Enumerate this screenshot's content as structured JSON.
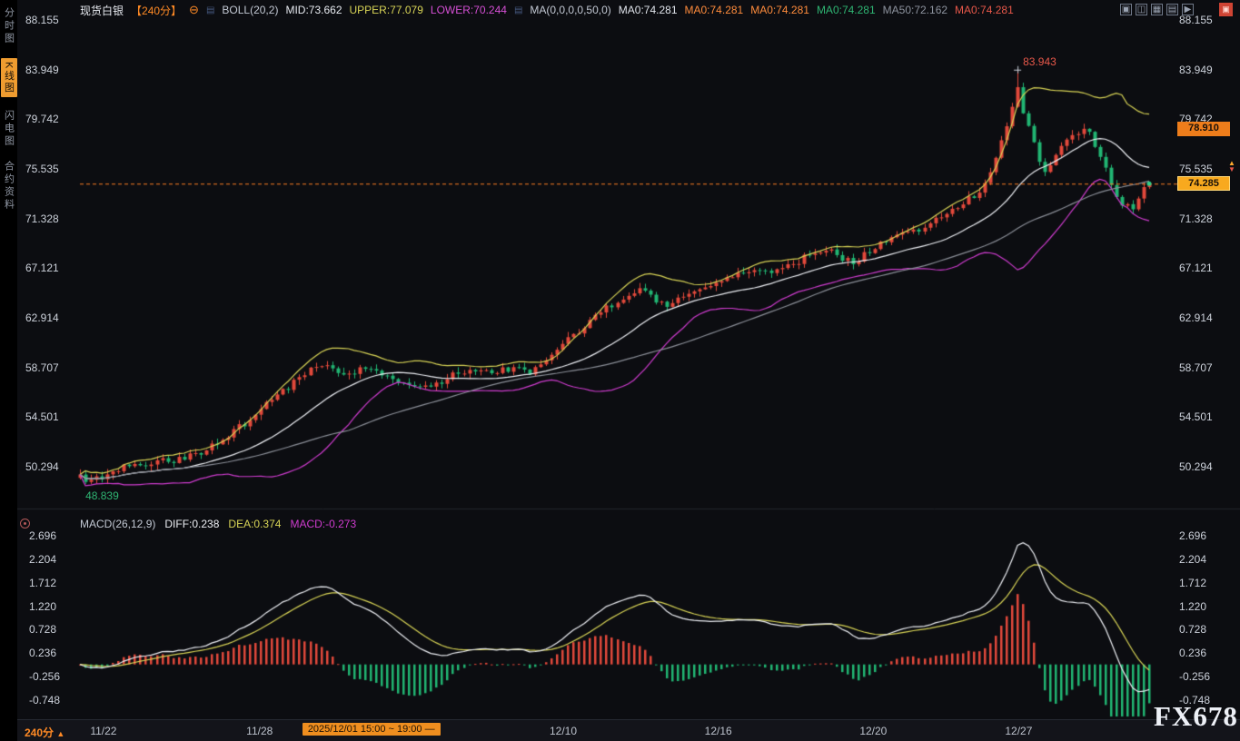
{
  "app": {
    "watermark": "FX678"
  },
  "header": {
    "symbol": "现货白银",
    "period_tag": "【240分】",
    "collapse_icon_glyph": "⊖",
    "indicator_icon_glyph": "▤",
    "boll_label": "BOLL(20,2)",
    "boll_mid": "MID:73.662",
    "boll_upper": "UPPER:77.079",
    "boll_lower": "LOWER:70.244",
    "ma_label": "MA(0,0,0,0,50,0)",
    "ma_values": [
      {
        "text": "MA0:74.281",
        "color": "#dfe3ea"
      },
      {
        "text": "MA0:74.281",
        "color": "#ff8c3c"
      },
      {
        "text": "MA0:74.281",
        "color": "#ff8c3c"
      },
      {
        "text": "MA0:74.281",
        "color": "#2fb573"
      },
      {
        "text": "MA50:72.162",
        "color": "#8d939e"
      },
      {
        "text": "MA0:74.281",
        "color": "#e8584a"
      }
    ],
    "toolbar_icons": [
      {
        "name": "layout-single-icon",
        "glyph": "▣"
      },
      {
        "name": "layout-split-horizontal-icon",
        "glyph": "◫"
      },
      {
        "name": "layout-grid-icon",
        "glyph": "▦"
      },
      {
        "name": "layout-rows-icon",
        "glyph": "▤"
      },
      {
        "name": "layout-expand-icon",
        "glyph": "▶"
      }
    ],
    "fullscreen_icon_glyph": "▣"
  },
  "sidebar": {
    "items": [
      {
        "label": "分时图",
        "name": "sidebar-item-time-chart",
        "active": false
      },
      {
        "label": "K线图",
        "name": "sidebar-item-kline-chart",
        "active": true
      },
      {
        "label": "闪电图",
        "name": "sidebar-item-lightning-chart",
        "active": false
      },
      {
        "label": "合约资料",
        "name": "sidebar-item-contract-info",
        "active": false
      }
    ]
  },
  "price_marker": {
    "up": "▲",
    "down": "▼"
  },
  "footer": {
    "period": "240分",
    "arrow": "▲"
  },
  "colors": {
    "up": "#e2493b",
    "down": "#21b573",
    "boll_upper": "#d8d456",
    "boll_mid": "#edeff4",
    "boll_lower": "#cf3ccf",
    "ma50": "#8b8f98",
    "diff": "#edeff4",
    "dea": "#d8d456",
    "accent_orange": "#ff8a25",
    "price_line": "#ff7e23"
  },
  "chart_data": {
    "type": "candlestick",
    "title": "现货白银 240分钟K线图",
    "y_axis": {
      "labels": [
        "88.155",
        "83.949",
        "79.742",
        "75.535",
        "71.328",
        "67.121",
        "62.914",
        "58.707",
        "54.501",
        "50.294"
      ]
    },
    "x_axis": {
      "labels": [
        {
          "text": "11/22",
          "f": 0.022
        },
        {
          "text": "11/28",
          "f": 0.168
        },
        {
          "text": "12/10",
          "f": 0.452
        },
        {
          "text": "12/16",
          "f": 0.597
        },
        {
          "text": "12/20",
          "f": 0.742
        },
        {
          "text": "12/27",
          "f": 0.878
        }
      ],
      "selected_range_f": 0.208
    },
    "candles": {
      "count": 196,
      "noise_seed": 987123,
      "body_noise": 0.3,
      "wick_noise": 0.42,
      "close_anchors": [
        [
          0,
          49.5
        ],
        [
          2,
          49.0
        ],
        [
          5,
          49.8
        ],
        [
          8,
          50.3
        ],
        [
          12,
          50.6
        ],
        [
          17,
          50.9
        ],
        [
          22,
          51.4
        ],
        [
          25,
          52.4
        ],
        [
          30,
          54.0
        ],
        [
          35,
          55.9
        ],
        [
          40,
          57.8
        ],
        [
          44,
          59.0
        ],
        [
          49,
          58.2
        ],
        [
          52,
          58.6
        ],
        [
          57,
          57.5
        ],
        [
          64,
          57.1
        ],
        [
          69,
          58.3
        ],
        [
          75,
          58.5
        ],
        [
          82,
          58.4
        ],
        [
          85,
          59.2
        ],
        [
          89,
          61.0
        ],
        [
          93,
          62.7
        ],
        [
          98,
          64.4
        ],
        [
          102,
          65.4
        ],
        [
          107,
          63.9
        ],
        [
          112,
          65.1
        ],
        [
          117,
          66.2
        ],
        [
          122,
          67.0
        ],
        [
          127,
          66.8
        ],
        [
          132,
          68.0
        ],
        [
          137,
          68.6
        ],
        [
          141,
          67.4
        ],
        [
          145,
          69.0
        ],
        [
          150,
          70.3
        ],
        [
          153,
          70.1
        ],
        [
          158,
          71.8
        ],
        [
          161,
          72.6
        ],
        [
          164,
          73.6
        ],
        [
          166,
          75.3
        ],
        [
          168,
          77.8
        ],
        [
          170,
          80.5
        ],
        [
          171,
          82.5
        ],
        [
          172,
          80.2
        ],
        [
          174,
          77.6
        ],
        [
          176,
          75.2
        ],
        [
          178,
          76.5
        ],
        [
          181,
          78.6
        ],
        [
          184,
          78.8
        ],
        [
          186,
          76.5
        ],
        [
          188,
          74.2
        ],
        [
          190,
          72.4
        ],
        [
          192,
          72.2
        ],
        [
          193,
          73.2
        ],
        [
          195,
          74.285
        ]
      ]
    },
    "forced": {
      "high_index": 171,
      "high_value": 83.943,
      "low_index": 2,
      "low_value": 48.839,
      "last_close": 74.285
    },
    "overlays": {
      "boll": {
        "period": 20,
        "dev": 2,
        "mid_last": 73.662,
        "upper_last": 77.079,
        "lower_last": 70.244
      },
      "ma": {
        "period": 50,
        "last": 72.162
      }
    },
    "macd": {
      "header": {
        "label": "MACD(26,12,9)",
        "diff": "DIFF:0.238",
        "dea": "DEA:0.374",
        "macd": "MACD:-0.273"
      },
      "params": [
        26,
        12,
        9
      ],
      "axis_labels": [
        "2.696",
        "2.204",
        "1.712",
        "1.220",
        "0.728",
        "0.236",
        "-0.256",
        "-0.748"
      ],
      "scale_max": 2.55
    },
    "annotations": {
      "high": "83.943",
      "low": "48.839",
      "selected_range": "2025/12/01 15:00 ~ 19:00 —"
    },
    "current_price": "74.285",
    "upper_band_badge": "78.910"
  }
}
